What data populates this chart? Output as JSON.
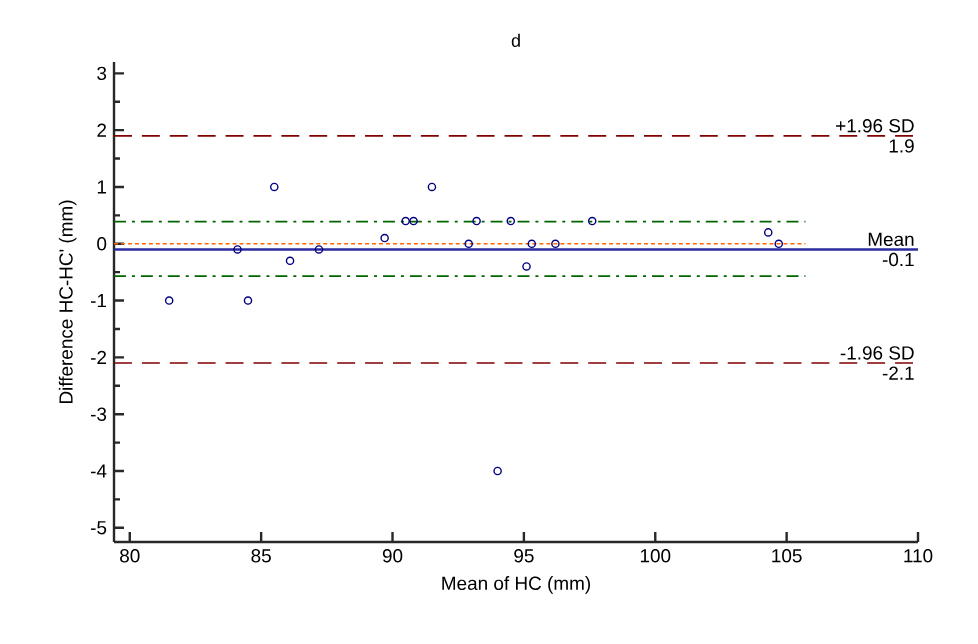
{
  "chart_data": {
    "type": "scatter",
    "title": "d",
    "xlabel": "Mean of HC (mm)",
    "ylabel": "Difference HC-HC' (mm)",
    "xlim": [
      79.4,
      110
    ],
    "ylim": [
      -5.25,
      3.2
    ],
    "xticks": [
      80,
      85,
      90,
      95,
      100,
      105,
      110
    ],
    "yticks": [
      -5,
      -4,
      -3,
      -2,
      -1,
      0,
      1,
      2,
      3
    ],
    "marker": "circle",
    "series": [
      {
        "color": "#000080",
        "x": [
          81.5,
          84.1,
          84.5,
          85.5,
          86.1,
          87.2,
          89.7,
          90.5,
          90.8,
          91.5,
          92.9,
          93.2,
          94.5,
          94.0,
          97.6,
          95.3,
          96.2,
          95.1,
          104.3,
          104.7
        ],
        "values": [
          -1.0,
          -0.1,
          -1.0,
          1.0,
          -0.3,
          -0.1,
          0.1,
          0.4,
          0.4,
          1.0,
          0.0,
          0.4,
          0.4,
          -4.0,
          0.4,
          0.0,
          0.0,
          -0.4,
          0.2,
          0.0
        ]
      }
    ],
    "ref_lines": [
      {
        "axis": "y",
        "value": 1.9,
        "label": "+1.96 SD",
        "color": "#800000",
        "line_style": "dashed"
      },
      {
        "axis": "y",
        "value": -0.1,
        "label": "Mean",
        "color": "#2b2ba0",
        "line_style": "solid"
      },
      {
        "axis": "y",
        "value": -2.1,
        "label": "-1.96 SD",
        "color": "#800000",
        "line_style": "dashed"
      },
      {
        "axis": "y",
        "value": 0,
        "color": "#ff6600",
        "line_style": "dotted"
      },
      {
        "axis": "y",
        "value": 0.39,
        "color": "#006400",
        "line_style": "dashdot"
      },
      {
        "axis": "y",
        "value": -0.57,
        "color": "#006400",
        "line_style": "dashdot"
      }
    ],
    "annotations": [
      "1.9",
      "-0.1",
      "-2.1"
    ]
  }
}
